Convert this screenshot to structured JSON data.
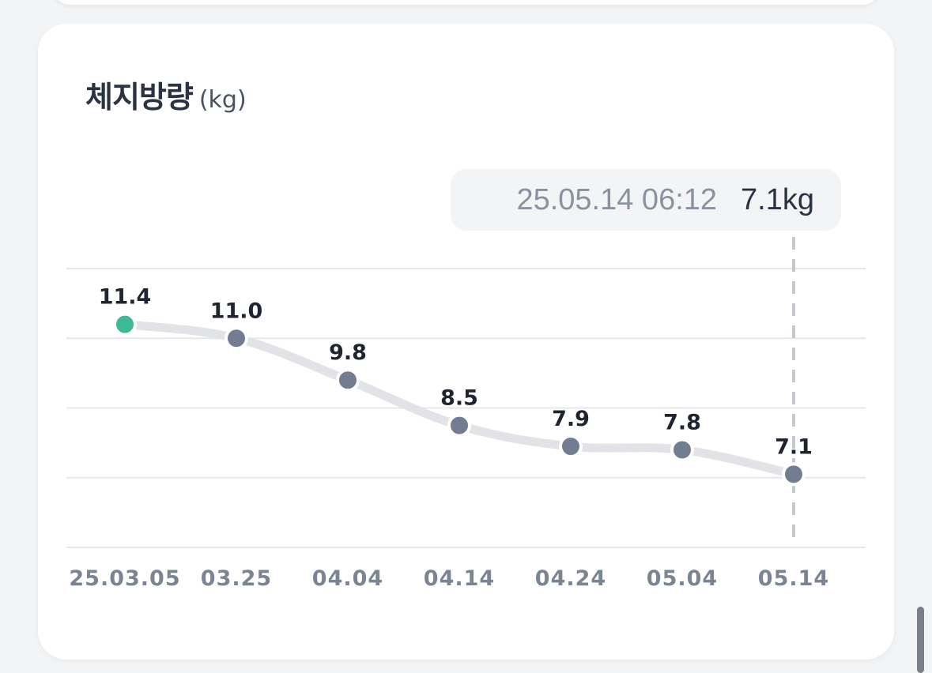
{
  "card": {
    "title": "체지방량",
    "unit": "(kg)"
  },
  "tooltip": {
    "datetime": "25.05.14 06:12",
    "value": "7.1kg"
  },
  "colors": {
    "line": "#e2e3e6",
    "point": "#737d91",
    "highlight_point": "#3fb895",
    "grid": "#e6e7ea",
    "label": "#1f2430",
    "axis_label": "#7b8493"
  },
  "chart_data": {
    "type": "line",
    "title": "체지방량 (kg)",
    "categories": [
      "25.03.05",
      "03.25",
      "04.04",
      "04.14",
      "04.24",
      "05.04",
      "05.14"
    ],
    "series": [
      {
        "values": [
          11.4,
          11.0,
          9.8,
          8.5,
          7.9,
          7.8,
          7.1
        ],
        "value_labels": [
          "11.4",
          "11.0",
          "9.8",
          "8.5",
          "7.9",
          "7.8",
          "7.1"
        ]
      }
    ],
    "ylim": [
      5.0,
      13.0
    ],
    "grid": true,
    "highlighted_index": 0,
    "selected_index": 6
  }
}
